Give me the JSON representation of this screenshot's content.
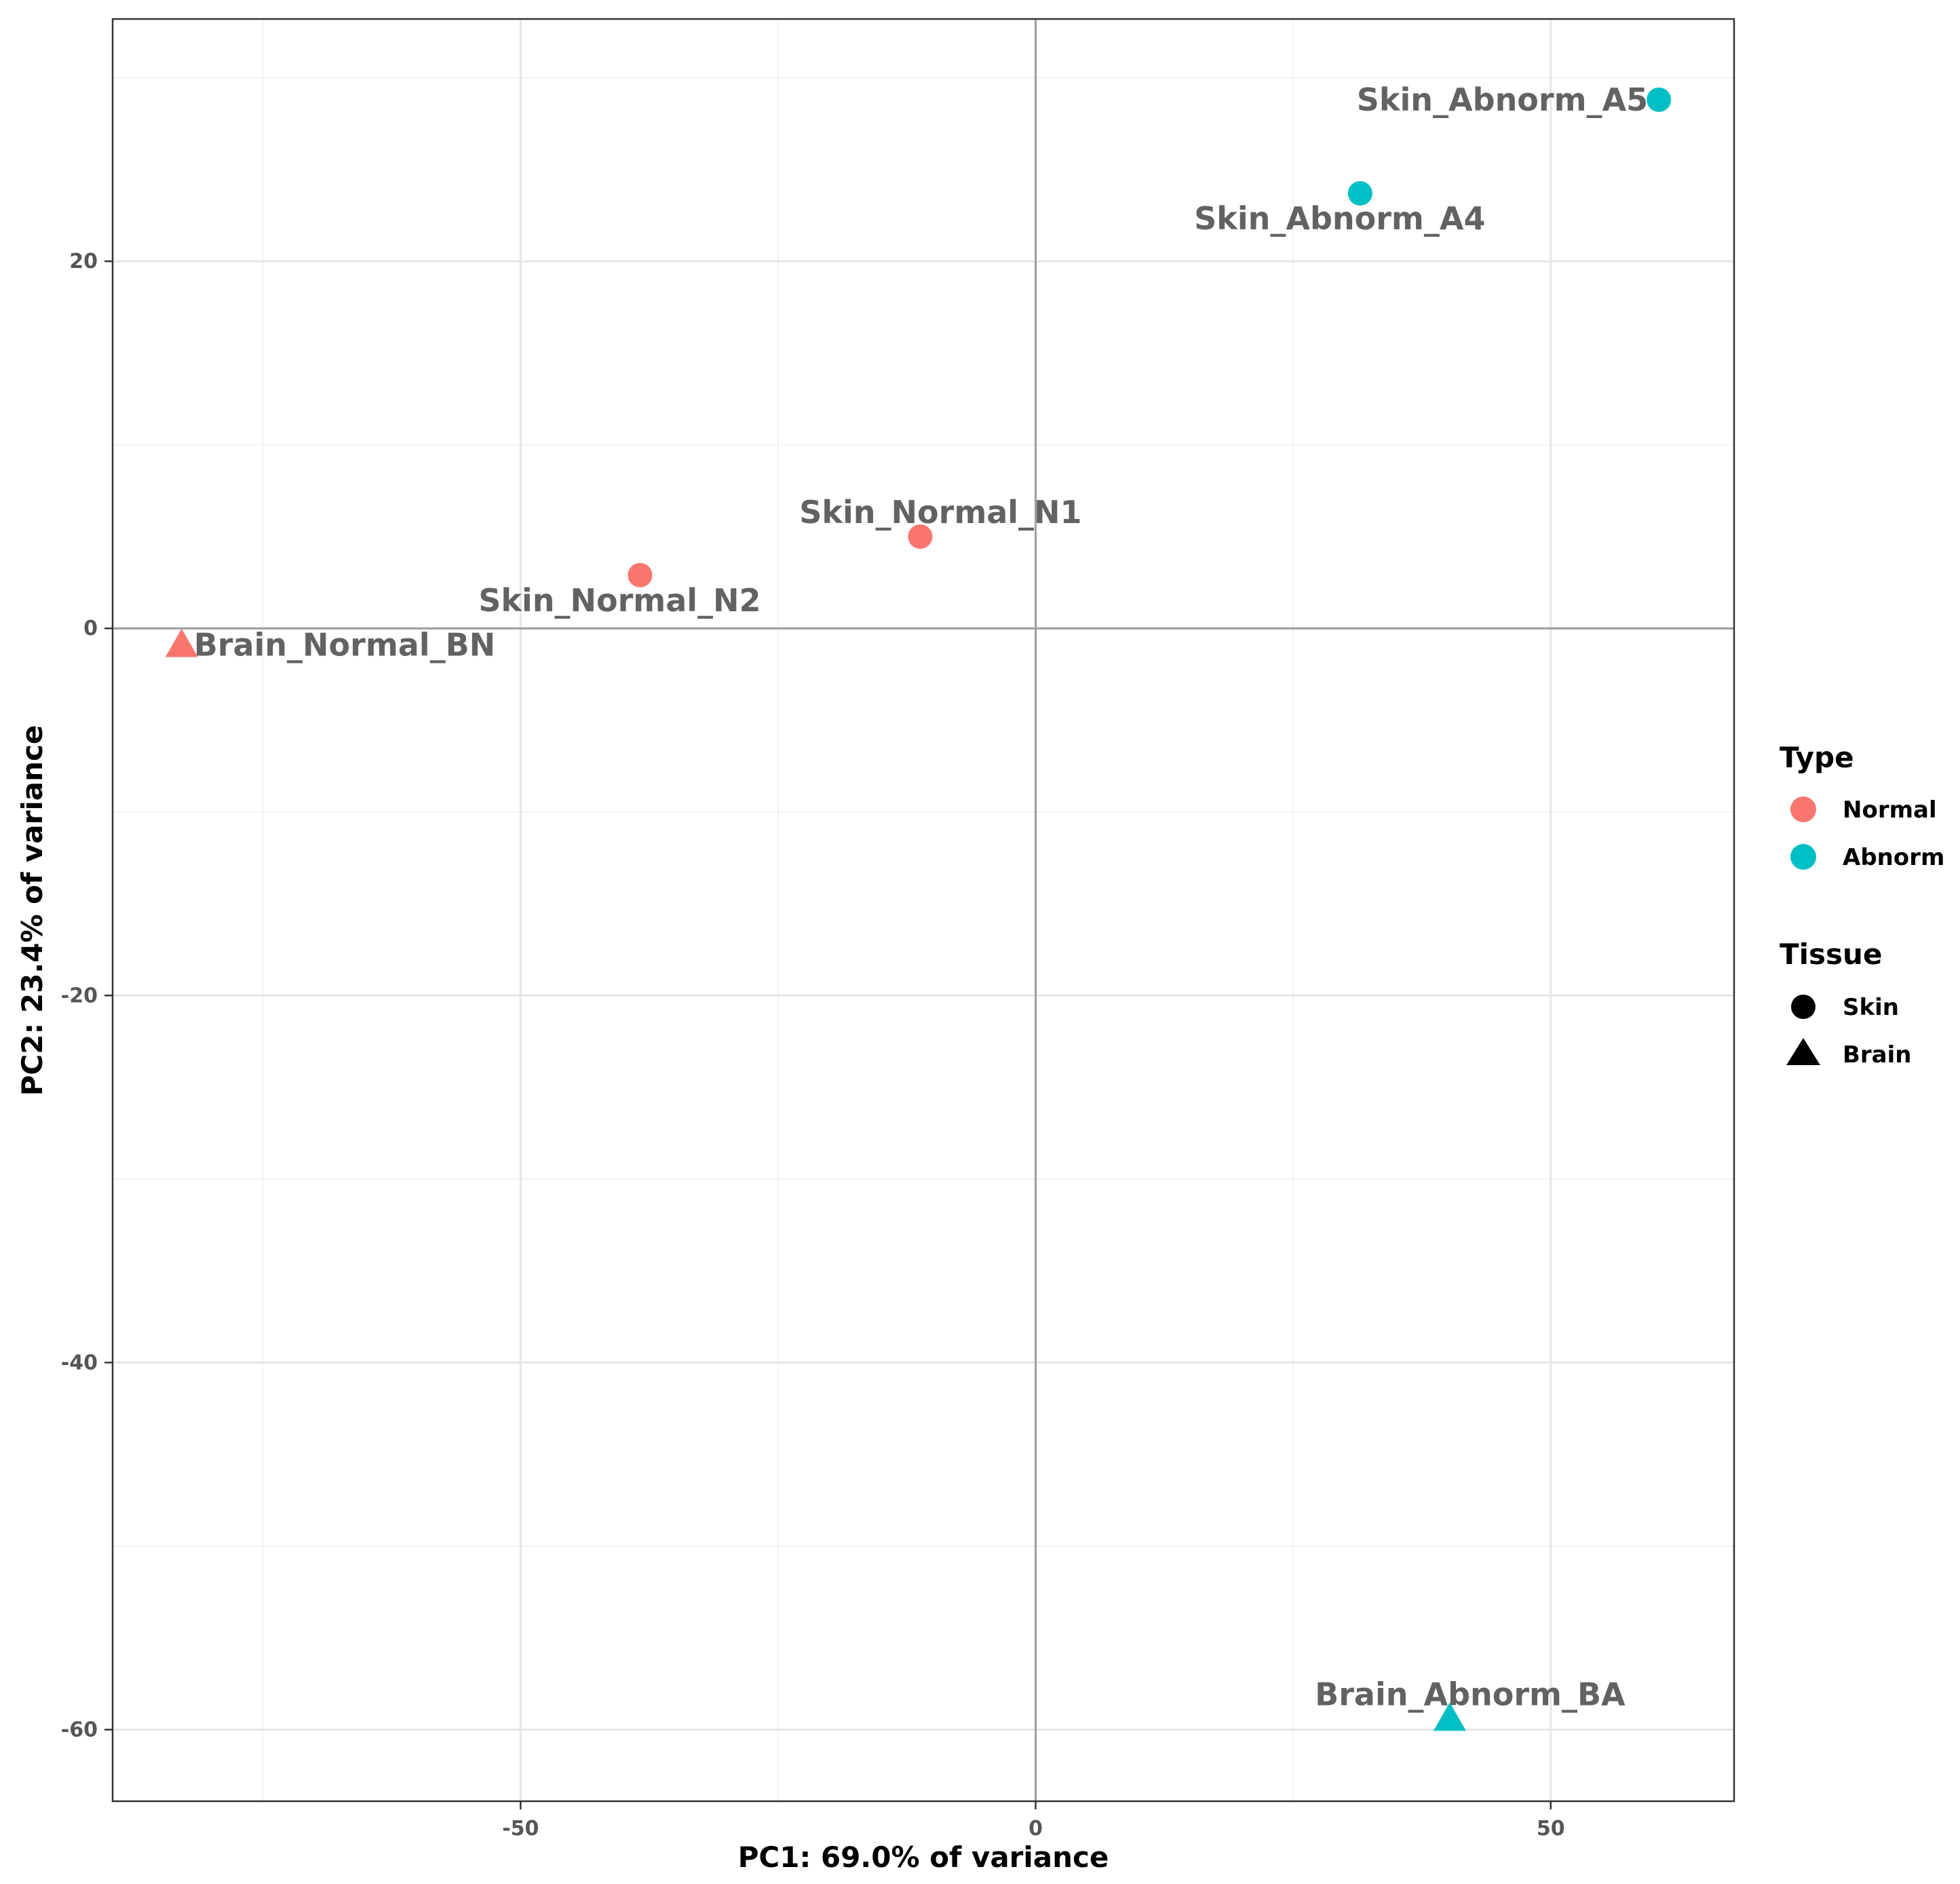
{
  "chart_data": {
    "type": "scatter",
    "title": "",
    "xlabel": "PC1: 69.0% of variance",
    "ylabel": "PC2: 23.4% of variance",
    "xlim": [
      -89.6,
      67.8
    ],
    "ylim": [
      -63.9,
      33.2
    ],
    "x_ticks": [
      -50,
      0,
      50
    ],
    "y_ticks": [
      -60,
      -40,
      -20,
      0,
      20
    ],
    "x_tick_labels": [
      "-50",
      "0",
      "50"
    ],
    "y_tick_labels": [
      "-60",
      "-40",
      "-20",
      "0",
      "20"
    ],
    "grid": true,
    "reference_lines": {
      "x": 0,
      "y": 0
    },
    "legend_position": "right",
    "points": [
      {
        "label": "Skin_Abnorm_A5",
        "x": 60.5,
        "y": 28.8,
        "type": "Abnorm",
        "tissue": "Skin",
        "label_pos": "left"
      },
      {
        "label": "Skin_Abnorm_A4",
        "x": 31.5,
        "y": 23.7,
        "type": "Abnorm",
        "tissue": "Skin",
        "label_pos": "below"
      },
      {
        "label": "Skin_Normal_N1",
        "x": -11.2,
        "y": 5.0,
        "type": "Normal",
        "tissue": "Skin",
        "label_pos": "above"
      },
      {
        "label": "Skin_Normal_N2",
        "x": -38.4,
        "y": 2.9,
        "type": "Normal",
        "tissue": "Skin",
        "label_pos": "below"
      },
      {
        "label": "Brain_Normal_BN",
        "x": -82.9,
        "y": -0.9,
        "type": "Normal",
        "tissue": "Brain",
        "label_pos": "right"
      },
      {
        "label": "Brain_Abnorm_BA",
        "x": 40.2,
        "y": -59.4,
        "type": "Abnorm",
        "tissue": "Brain",
        "label_pos": "above"
      }
    ],
    "legend": {
      "type": {
        "title": "Type",
        "entries": [
          {
            "label": "Normal",
            "color": "#F8766D"
          },
          {
            "label": "Abnorm",
            "color": "#00BFC4"
          }
        ]
      },
      "tissue": {
        "title": "Tissue",
        "entries": [
          {
            "label": "Skin",
            "shape": "circle"
          },
          {
            "label": "Brain",
            "shape": "triangle"
          }
        ]
      }
    }
  }
}
